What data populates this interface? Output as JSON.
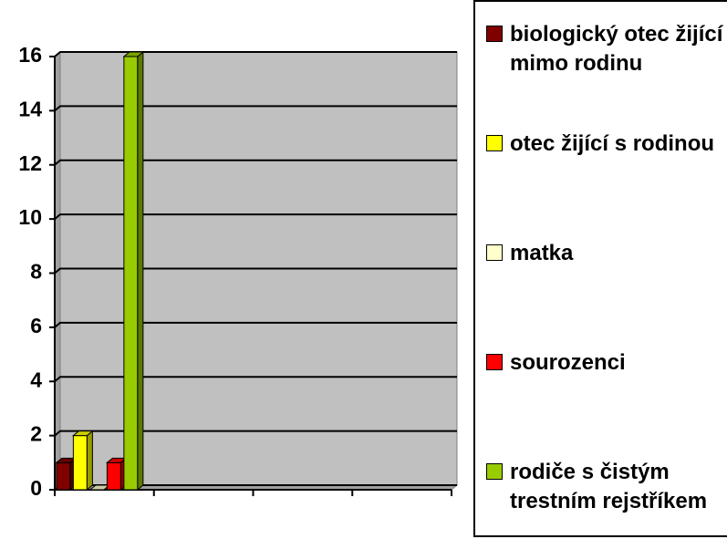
{
  "chart_data": {
    "type": "bar3d",
    "categories": [
      null,
      null,
      null,
      null
    ],
    "series": [
      {
        "name": "biologický otec žijící mimo rodinu",
        "color": "#800000",
        "values": [
          1,
          null,
          null,
          null
        ]
      },
      {
        "name": "otec žijící s rodinou",
        "color": "#ffff00",
        "values": [
          2,
          null,
          null,
          null
        ]
      },
      {
        "name": "matka",
        "color": "#ffffcc",
        "values": [
          0,
          null,
          null,
          null
        ]
      },
      {
        "name": "sourozenci",
        "color": "#ff0000",
        "values": [
          1,
          null,
          null,
          null
        ]
      },
      {
        "name": "rodiče s čistým trestním rejstříkem",
        "color": "#99cc00",
        "values": [
          16,
          null,
          null,
          null
        ]
      }
    ],
    "ylim": [
      0,
      16
    ],
    "yticks": [
      0,
      2,
      4,
      6,
      8,
      10,
      12,
      14,
      16
    ],
    "grid": true,
    "legend": "right"
  }
}
